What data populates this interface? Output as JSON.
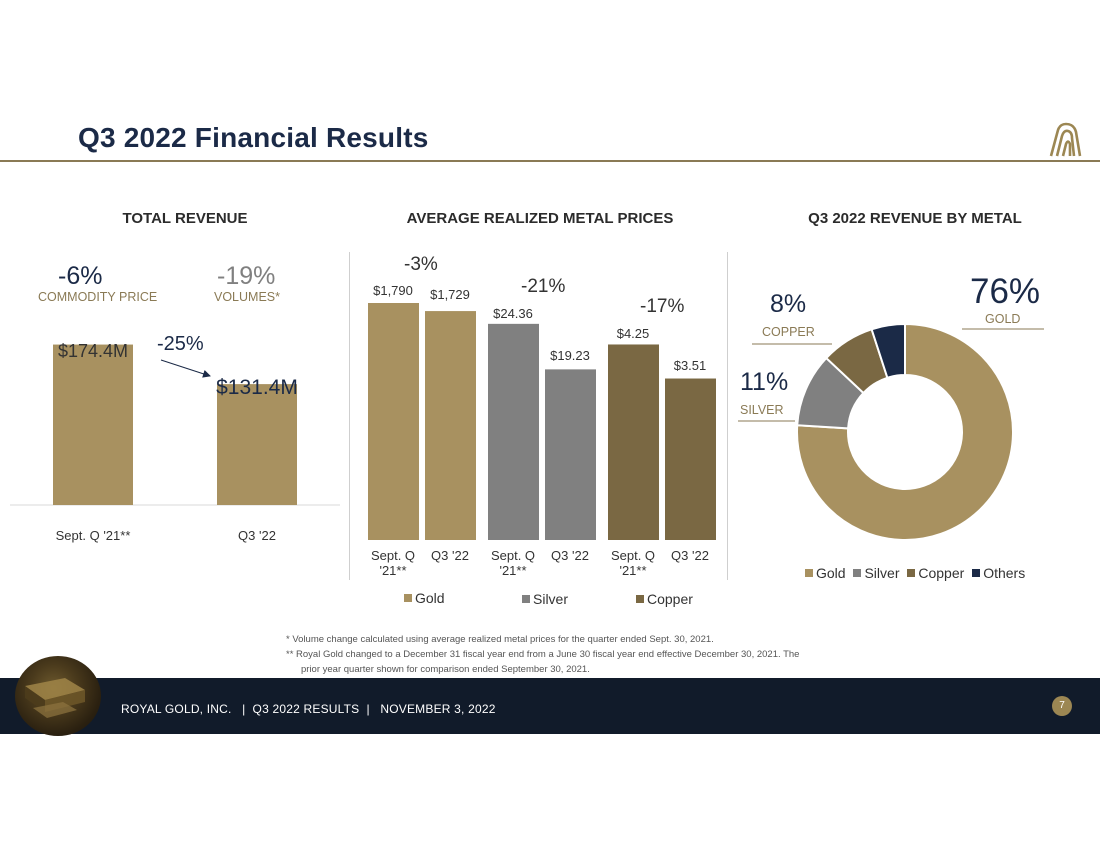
{
  "header": {
    "title": "Q3 2022 Financial Results",
    "logo_icon": "royal-gold-logo-icon"
  },
  "colors": {
    "gold": "#a89160",
    "silver": "#808080",
    "copper": "#7a6843",
    "others": "#1b2a47",
    "navy": "#111b2a",
    "accent": "#8a7a55"
  },
  "total_revenue": {
    "title": "TOTAL REVENUE",
    "commodity_pct": "-6%",
    "commodity_label": "COMMODITY PRICE",
    "volumes_pct": "-19%",
    "volumes_label": "VOLUMES*",
    "change_pct": "-25%"
  },
  "metal_prices": {
    "title": "AVERAGE REALIZED METAL PRICES",
    "gold_change": "-3%",
    "silver_change": "-21%",
    "copper_change": "-17%"
  },
  "revenue_by_metal": {
    "title": "Q3 2022 REVENUE BY METAL",
    "gold_pct": "76%",
    "gold_label": "GOLD",
    "silver_pct": "11%",
    "silver_label": "SILVER",
    "copper_pct": "8%",
    "copper_label": "COPPER"
  },
  "chart_data": [
    {
      "type": "bar",
      "title": "TOTAL REVENUE",
      "categories": [
        "Sept. Q '21**",
        "Q3 '22"
      ],
      "values": [
        174.4,
        131.4
      ],
      "labels": [
        "$174.4M",
        "$131.4M"
      ],
      "ylim": [
        0,
        250
      ]
    },
    {
      "type": "bar",
      "title": "AVERAGE REALIZED METAL PRICES",
      "categories": [
        "Sept. Q '21**",
        "Q3 '22"
      ],
      "series": [
        {
          "name": "Gold",
          "values": [
            1790,
            1729
          ],
          "labels": [
            "$1,790",
            "$1,729"
          ]
        },
        {
          "name": "Silver",
          "values": [
            24.36,
            19.23
          ],
          "labels": [
            "$24.36",
            "$19.23"
          ]
        },
        {
          "name": "Copper",
          "values": [
            4.25,
            3.51
          ],
          "labels": [
            "$4.25",
            "$3.51"
          ]
        }
      ]
    },
    {
      "type": "pie",
      "title": "Q3 2022 REVENUE BY METAL",
      "categories": [
        "Gold",
        "Silver",
        "Copper",
        "Others"
      ],
      "values": [
        76,
        11,
        8,
        5
      ],
      "legend": "bottom"
    }
  ],
  "footnotes": {
    "note1": "*    Volume change calculated using average realized metal prices for the quarter ended Sept. 30, 2021.",
    "note2": "**   Royal Gold changed to a December 31 fiscal year end from a June 30 fiscal year end effective December 30, 2021.  The",
    "note3": "prior year quarter shown for comparison ended September 30, 2021."
  },
  "footer": {
    "text": "ROYAL GOLD, INC.   |  Q3 2022 RESULTS  |   NOVEMBER 3, 2022",
    "page_number": "7"
  }
}
